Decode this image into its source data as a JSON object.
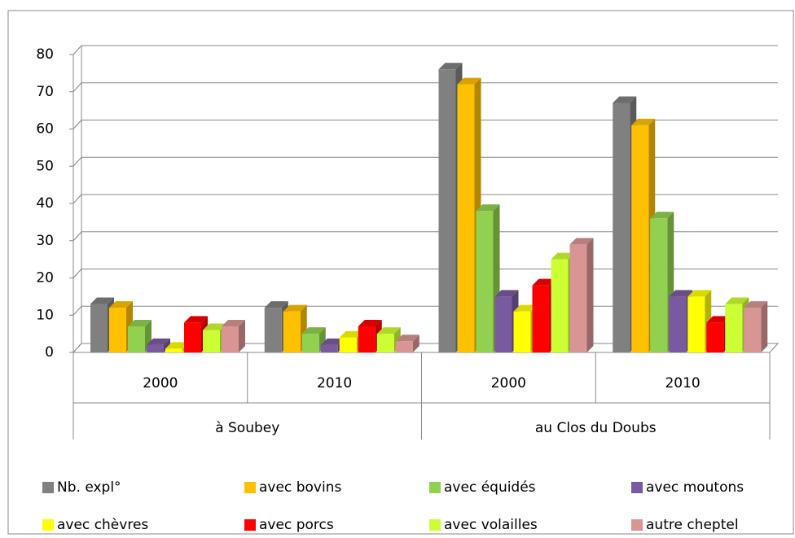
{
  "chart_data": {
    "type": "bar3d",
    "categories": [
      "2000",
      "2010",
      "2000",
      "2010"
    ],
    "groups": [
      "à Soubey",
      "au Clos du Doubs"
    ],
    "series": [
      {
        "name": "Nb. expl°",
        "color": "#808080",
        "values": [
          13,
          12,
          76,
          67
        ]
      },
      {
        "name": "avec bovins",
        "color": "#FFC000",
        "values": [
          12,
          11,
          72,
          61
        ]
      },
      {
        "name": "avec équidés",
        "color": "#92D050",
        "values": [
          7,
          5,
          38,
          36
        ]
      },
      {
        "name": "avec moutons",
        "color": "#7A5A9E",
        "values": [
          2,
          2,
          15,
          15
        ]
      },
      {
        "name": "avec chèvres",
        "color": "#FFFF00",
        "values": [
          1,
          4,
          11,
          15
        ]
      },
      {
        "name": "avec porcs",
        "color": "#FF0000",
        "values": [
          8,
          7,
          18,
          8
        ]
      },
      {
        "name": "avec volailles",
        "color": "#CCFF33",
        "values": [
          6,
          5,
          25,
          13
        ]
      },
      {
        "name": "autre cheptel",
        "color": "#D99594",
        "values": [
          7,
          3,
          29,
          12
        ]
      }
    ],
    "ylim": [
      0,
      80
    ],
    "yticks": [
      0,
      10,
      20,
      30,
      40,
      50,
      60,
      70,
      80
    ],
    "grid": true
  }
}
